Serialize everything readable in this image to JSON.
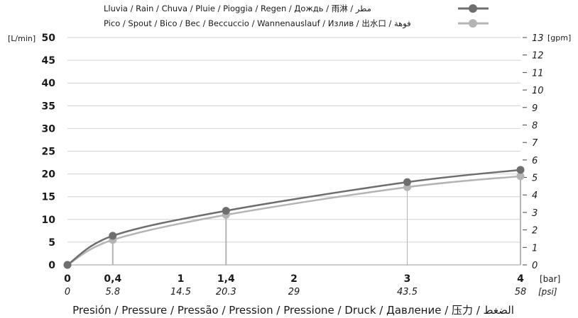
{
  "chart_data": {
    "type": "line",
    "series": [
      {
        "name": "Lluvia / Rain / Chuva / Pluie / Pioggia / Regen / Дождь / 雨淋 / مطر",
        "color": "#6e6e6e",
        "x": [
          0,
          0.4,
          1.4,
          3,
          4
        ],
        "values": [
          0,
          6.4,
          11.9,
          18.2,
          20.9
        ]
      },
      {
        "name": "Pico / Spout / Bico / Bec / Beccuccio / Wannenauslauf / Излив / 出水口 / فوهة",
        "color": "#b4b4b4",
        "x": [
          0,
          0.4,
          1.4,
          3,
          4
        ],
        "values": [
          0,
          5.5,
          11.0,
          17.1,
          19.5
        ]
      }
    ],
    "y_left": {
      "unit": "[L/min]",
      "ylim": [
        0,
        50
      ],
      "ticks": [
        "0",
        "5",
        "10",
        "15",
        "20",
        "25",
        "30",
        "35",
        "40",
        "45",
        "50"
      ]
    },
    "y_right": {
      "unit": "[gpm]",
      "ylim": [
        0,
        13
      ],
      "ticks": [
        "0",
        "1",
        "2",
        "3",
        "4",
        "5",
        "6",
        "7",
        "8",
        "9",
        "10",
        "11",
        "12",
        "13"
      ]
    },
    "x_bar": {
      "unit": "[bar]",
      "xlim": [
        0,
        4
      ],
      "ticks": [
        {
          "v": 0,
          "label": "0"
        },
        {
          "v": 0.4,
          "label": "0,4"
        },
        {
          "v": 1,
          "label": "1"
        },
        {
          "v": 1.4,
          "label": "1,4"
        },
        {
          "v": 2,
          "label": "2"
        },
        {
          "v": 3,
          "label": "3"
        },
        {
          "v": 4,
          "label": "4"
        }
      ]
    },
    "x_psi": {
      "unit": "[psi]",
      "ticks": [
        {
          "v": 0,
          "label": "0"
        },
        {
          "v": 0.4,
          "label": "5.8"
        },
        {
          "v": 1,
          "label": "14.5"
        },
        {
          "v": 1.4,
          "label": "20.3"
        },
        {
          "v": 2,
          "label": "29"
        },
        {
          "v": 3,
          "label": "43.5"
        },
        {
          "v": 4,
          "label": "58"
        }
      ]
    },
    "xlabel": "Presión / Pressure / Pressão / Pression / Pressione / Druck / Давление / 压力 / الضغط",
    "grid": true,
    "legend_position": "top"
  }
}
